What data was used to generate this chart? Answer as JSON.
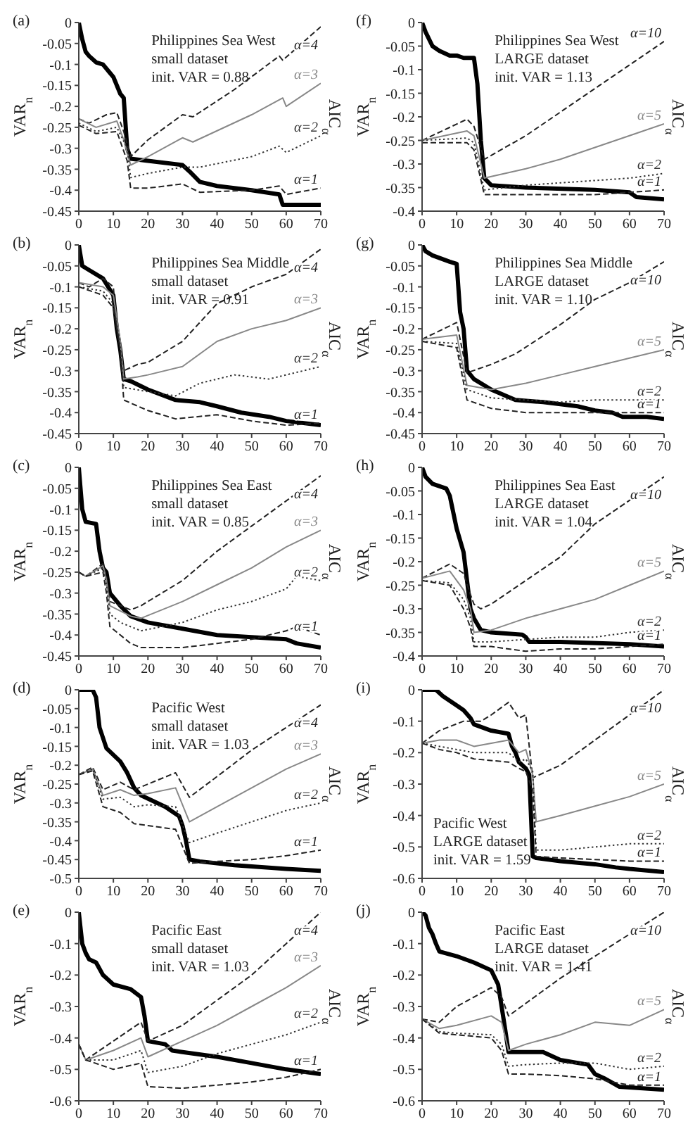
{
  "chart_data": [
    {
      "type": "line",
      "title": "(a)",
      "ylabel": "VAR$_{n}$",
      "y2label": "AIC$_{α}$",
      "annotations": [
        "Philippines Sea West",
        "small dataset",
        "init. VAR = 0.88"
      ],
      "xlim": [
        0,
        70
      ],
      "xticks": [
        0,
        10,
        20,
        30,
        40,
        50,
        60,
        70
      ],
      "ylim": [
        -0.45,
        0
      ],
      "yticks": [
        0,
        -0.05,
        -0.1,
        -0.15,
        -0.2,
        -0.25,
        -0.3,
        -0.35,
        -0.4,
        -0.45
      ],
      "series": [
        {
          "color": "#000000",
          "line_style": "solid",
          "x": [
            0,
            1,
            2,
            3,
            5,
            7,
            9,
            10,
            12,
            13,
            14,
            15,
            20,
            30,
            32,
            35,
            40,
            50,
            58,
            59,
            70
          ],
          "values": [
            0,
            -0.04,
            -0.07,
            -0.08,
            -0.095,
            -0.1,
            -0.12,
            -0.13,
            -0.17,
            -0.18,
            -0.3,
            -0.325,
            -0.33,
            -0.34,
            -0.355,
            -0.38,
            -0.39,
            -0.4,
            -0.41,
            -0.435,
            -0.435
          ]
        },
        {
          "name": "α=4",
          "color": "#222222",
          "line_style": "dashed",
          "x": [
            0,
            3,
            8,
            11,
            13,
            15,
            20,
            30,
            33,
            45,
            58,
            59,
            70
          ],
          "values": [
            -0.23,
            -0.24,
            -0.22,
            -0.215,
            -0.26,
            -0.32,
            -0.28,
            -0.22,
            -0.225,
            -0.16,
            -0.08,
            -0.09,
            -0.01
          ]
        },
        {
          "name": "α=3",
          "color": "#888888",
          "line_style": "solid",
          "x": [
            0,
            5,
            11,
            13,
            15,
            20,
            30,
            33,
            50,
            59,
            60,
            70
          ],
          "values": [
            -0.23,
            -0.25,
            -0.235,
            -0.28,
            -0.34,
            -0.32,
            -0.275,
            -0.285,
            -0.22,
            -0.18,
            -0.2,
            -0.145
          ]
        },
        {
          "name": "α=2",
          "color": "#333333",
          "line_style": "dotted",
          "x": [
            0,
            5,
            11,
            14,
            15,
            20,
            30,
            35,
            50,
            58,
            60,
            70
          ],
          "values": [
            -0.24,
            -0.26,
            -0.25,
            -0.3,
            -0.37,
            -0.36,
            -0.345,
            -0.345,
            -0.32,
            -0.295,
            -0.31,
            -0.27
          ]
        },
        {
          "name": "α=1",
          "color": "#222222",
          "line_style": "dashed",
          "x": [
            0,
            5,
            11,
            14,
            15,
            20,
            30,
            35,
            50,
            58,
            60,
            70
          ],
          "values": [
            -0.245,
            -0.265,
            -0.26,
            -0.33,
            -0.395,
            -0.395,
            -0.385,
            -0.405,
            -0.4,
            -0.39,
            -0.41,
            -0.395
          ]
        }
      ]
    },
    {
      "type": "line",
      "title": "(b)",
      "ylabel": "VAR$_{n}$",
      "y2label": "AIC$_{α}$",
      "annotations": [
        "Philippines Sea Middle",
        "small dataset",
        "init. VAR = 0.91"
      ],
      "xlim": [
        0,
        70
      ],
      "xticks": [
        0,
        10,
        20,
        30,
        40,
        50,
        60,
        70
      ],
      "ylim": [
        -0.45,
        0
      ],
      "yticks": [
        0,
        -0.05,
        -0.1,
        -0.15,
        -0.2,
        -0.25,
        -0.3,
        -0.35,
        -0.4,
        -0.45
      ],
      "series": [
        {
          "color": "#000000",
          "line_style": "solid",
          "x": [
            0,
            1,
            3,
            7,
            10,
            11,
            12,
            13,
            15,
            20,
            28,
            35,
            40,
            47,
            55,
            60,
            70
          ],
          "values": [
            0,
            -0.05,
            -0.06,
            -0.08,
            -0.12,
            -0.2,
            -0.25,
            -0.32,
            -0.325,
            -0.345,
            -0.37,
            -0.375,
            -0.385,
            -0.4,
            -0.41,
            -0.42,
            -0.43
          ]
        },
        {
          "name": "α=4",
          "color": "#222222",
          "line_style": "dashed",
          "x": [
            0,
            3,
            7,
            10,
            11,
            12,
            13,
            17,
            20,
            30,
            40,
            50,
            60,
            70
          ],
          "values": [
            -0.09,
            -0.1,
            -0.08,
            -0.1,
            -0.2,
            -0.24,
            -0.3,
            -0.285,
            -0.28,
            -0.23,
            -0.14,
            -0.1,
            -0.07,
            -0.01
          ]
        },
        {
          "name": "α=3",
          "color": "#888888",
          "line_style": "solid",
          "x": [
            0,
            7,
            10,
            12,
            13,
            17,
            20,
            30,
            40,
            50,
            60,
            70
          ],
          "values": [
            -0.09,
            -0.1,
            -0.12,
            -0.23,
            -0.32,
            -0.315,
            -0.31,
            -0.29,
            -0.23,
            -0.2,
            -0.18,
            -0.15
          ]
        },
        {
          "name": "α=2",
          "color": "#333333",
          "line_style": "dotted",
          "x": [
            0,
            7,
            10,
            12,
            13,
            20,
            28,
            35,
            45,
            55,
            70
          ],
          "values": [
            -0.1,
            -0.11,
            -0.14,
            -0.24,
            -0.34,
            -0.35,
            -0.36,
            -0.33,
            -0.31,
            -0.32,
            -0.29
          ]
        },
        {
          "name": "α=1",
          "color": "#222222",
          "line_style": "dashed",
          "x": [
            0,
            7,
            10,
            12,
            13,
            20,
            28,
            40,
            50,
            60,
            70
          ],
          "values": [
            -0.1,
            -0.12,
            -0.15,
            -0.25,
            -0.37,
            -0.395,
            -0.415,
            -0.405,
            -0.42,
            -0.43,
            -0.425
          ]
        }
      ]
    },
    {
      "type": "line",
      "title": "(c)",
      "ylabel": "VAR$_{n}$",
      "y2label": "AIC$_{α}$",
      "annotations": [
        "Philippines Sea East",
        "small dataset",
        "init. VAR = 0.85"
      ],
      "xlim": [
        0,
        70
      ],
      "xticks": [
        0,
        10,
        20,
        30,
        40,
        50,
        60,
        70
      ],
      "ylim": [
        -0.45,
        0
      ],
      "yticks": [
        0,
        -0.05,
        -0.1,
        -0.15,
        -0.2,
        -0.25,
        -0.3,
        -0.35,
        -0.4,
        -0.45
      ],
      "series": [
        {
          "color": "#000000",
          "line_style": "solid",
          "x": [
            0,
            1,
            2,
            5,
            6,
            7,
            8,
            9,
            12,
            15,
            20,
            30,
            40,
            50,
            60,
            63,
            70
          ],
          "values": [
            0,
            -0.1,
            -0.13,
            -0.135,
            -0.2,
            -0.24,
            -0.25,
            -0.3,
            -0.33,
            -0.355,
            -0.37,
            -0.385,
            -0.4,
            -0.405,
            -0.41,
            -0.42,
            -0.43
          ]
        },
        {
          "name": "α=4",
          "color": "#222222",
          "line_style": "dashed",
          "x": [
            0,
            2,
            7,
            8,
            9,
            15,
            18,
            30,
            40,
            50,
            60,
            70
          ],
          "values": [
            -0.25,
            -0.26,
            -0.23,
            -0.26,
            -0.32,
            -0.34,
            -0.33,
            -0.27,
            -0.2,
            -0.14,
            -0.08,
            -0.02
          ]
        },
        {
          "name": "α=3",
          "color": "#888888",
          "line_style": "solid",
          "x": [
            0,
            2,
            7,
            8,
            9,
            15,
            18,
            30,
            40,
            50,
            60,
            70
          ],
          "values": [
            -0.25,
            -0.26,
            -0.235,
            -0.27,
            -0.33,
            -0.355,
            -0.36,
            -0.32,
            -0.28,
            -0.24,
            -0.19,
            -0.15
          ]
        },
        {
          "name": "α=2",
          "color": "#333333",
          "line_style": "dotted",
          "x": [
            0,
            2,
            7,
            8,
            9,
            12,
            18,
            30,
            40,
            50,
            60,
            63,
            70
          ],
          "values": [
            -0.25,
            -0.26,
            -0.24,
            -0.28,
            -0.35,
            -0.37,
            -0.39,
            -0.37,
            -0.34,
            -0.32,
            -0.29,
            -0.26,
            -0.27
          ]
        },
        {
          "name": "α=1",
          "color": "#222222",
          "line_style": "dashed",
          "x": [
            0,
            2,
            7,
            8,
            9,
            15,
            18,
            30,
            40,
            50,
            60,
            63,
            70
          ],
          "values": [
            -0.25,
            -0.26,
            -0.25,
            -0.3,
            -0.38,
            -0.42,
            -0.43,
            -0.43,
            -0.42,
            -0.41,
            -0.39,
            -0.38,
            -0.4
          ]
        }
      ]
    },
    {
      "type": "line",
      "title": "(d)",
      "ylabel": "VAR$_{n}$",
      "y2label": "AIC$_{α}$",
      "annotations": [
        "Pacific West",
        "small dataset",
        "init. VAR = 1.03"
      ],
      "xlim": [
        0,
        70
      ],
      "xticks": [
        0,
        10,
        20,
        30,
        40,
        50,
        60,
        70
      ],
      "ylim": [
        -0.5,
        0
      ],
      "yticks": [
        0,
        -0.05,
        -0.1,
        -0.15,
        -0.2,
        -0.25,
        -0.3,
        -0.35,
        -0.4,
        -0.45,
        -0.5
      ],
      "series": [
        {
          "color": "#000000",
          "line_style": "solid",
          "x": [
            0,
            4,
            5,
            6,
            8,
            12,
            14,
            16,
            18,
            25,
            29,
            30,
            31,
            32,
            35,
            45,
            60,
            70
          ],
          "values": [
            0,
            0,
            -0.02,
            -0.1,
            -0.155,
            -0.19,
            -0.22,
            -0.26,
            -0.28,
            -0.31,
            -0.335,
            -0.36,
            -0.4,
            -0.45,
            -0.455,
            -0.465,
            -0.475,
            -0.48
          ]
        },
        {
          "name": "α=4",
          "color": "#222222",
          "line_style": "dashed",
          "x": [
            0,
            4,
            7,
            12,
            16,
            20,
            28,
            32,
            40,
            50,
            60,
            70
          ],
          "values": [
            -0.225,
            -0.205,
            -0.265,
            -0.245,
            -0.265,
            -0.25,
            -0.22,
            -0.285,
            -0.23,
            -0.16,
            -0.1,
            -0.04
          ]
        },
        {
          "name": "α=3",
          "color": "#888888",
          "line_style": "solid",
          "x": [
            0,
            4,
            7,
            12,
            16,
            20,
            28,
            32,
            40,
            50,
            60,
            70
          ],
          "values": [
            -0.225,
            -0.21,
            -0.28,
            -0.265,
            -0.28,
            -0.275,
            -0.26,
            -0.35,
            -0.31,
            -0.26,
            -0.21,
            -0.17
          ]
        },
        {
          "name": "α=2",
          "color": "#333333",
          "line_style": "dotted",
          "x": [
            0,
            4,
            7,
            12,
            16,
            20,
            28,
            32,
            40,
            50,
            60,
            70
          ],
          "values": [
            -0.225,
            -0.21,
            -0.29,
            -0.285,
            -0.31,
            -0.305,
            -0.31,
            -0.405,
            -0.38,
            -0.35,
            -0.32,
            -0.3
          ]
        },
        {
          "name": "α=1",
          "color": "#222222",
          "line_style": "dashed",
          "x": [
            0,
            4,
            7,
            12,
            16,
            20,
            28,
            32,
            40,
            50,
            60,
            70
          ],
          "values": [
            -0.225,
            -0.215,
            -0.31,
            -0.325,
            -0.355,
            -0.36,
            -0.37,
            -0.46,
            -0.455,
            -0.45,
            -0.44,
            -0.425
          ]
        }
      ]
    },
    {
      "type": "line",
      "title": "(e)",
      "ylabel": "VAR$_{n}$",
      "y2label": "AIC$_{α}$",
      "annotations": [
        "Pacific East",
        "small dataset",
        "init. VAR = 1.03"
      ],
      "xlim": [
        0,
        70
      ],
      "xticks": [
        0,
        10,
        20,
        30,
        40,
        50,
        60,
        70
      ],
      "ylim": [
        -0.6,
        0
      ],
      "yticks": [
        0,
        -0.1,
        -0.2,
        -0.3,
        -0.4,
        -0.5,
        -0.6
      ],
      "series": [
        {
          "color": "#000000",
          "line_style": "solid",
          "x": [
            0,
            1,
            2,
            3,
            5,
            7,
            10,
            15,
            18,
            19,
            20,
            25,
            27,
            30,
            40,
            50,
            60,
            70
          ],
          "values": [
            0,
            -0.1,
            -0.13,
            -0.15,
            -0.16,
            -0.2,
            -0.23,
            -0.245,
            -0.27,
            -0.33,
            -0.41,
            -0.42,
            -0.44,
            -0.445,
            -0.46,
            -0.48,
            -0.5,
            -0.515
          ]
        },
        {
          "name": "α=4",
          "color": "#222222",
          "line_style": "dashed",
          "x": [
            0,
            2,
            10,
            18,
            20,
            30,
            40,
            50,
            60,
            70
          ],
          "values": [
            -0.42,
            -0.47,
            -0.41,
            -0.35,
            -0.41,
            -0.36,
            -0.28,
            -0.2,
            -0.1,
            0
          ]
        },
        {
          "name": "α=3",
          "color": "#888888",
          "line_style": "solid",
          "x": [
            0,
            2,
            10,
            18,
            20,
            30,
            40,
            50,
            60,
            70
          ],
          "values": [
            -0.42,
            -0.47,
            -0.44,
            -0.4,
            -0.46,
            -0.41,
            -0.36,
            -0.3,
            -0.24,
            -0.17
          ]
        },
        {
          "name": "α=2",
          "color": "#333333",
          "line_style": "dotted",
          "x": [
            0,
            2,
            10,
            18,
            20,
            30,
            40,
            50,
            60,
            70
          ],
          "values": [
            -0.42,
            -0.47,
            -0.47,
            -0.44,
            -0.51,
            -0.49,
            -0.45,
            -0.42,
            -0.39,
            -0.35
          ]
        },
        {
          "name": "α=1",
          "color": "#222222",
          "line_style": "dashed",
          "x": [
            0,
            2,
            10,
            18,
            20,
            30,
            40,
            50,
            60,
            70
          ],
          "values": [
            -0.42,
            -0.47,
            -0.5,
            -0.48,
            -0.555,
            -0.56,
            -0.55,
            -0.54,
            -0.525,
            -0.5
          ]
        }
      ]
    },
    {
      "type": "line",
      "title": "(f)",
      "ylabel": "VAR$_{n}$",
      "y2label": "AIC$_{α}$",
      "annotations": [
        "Philippines Sea West",
        "LARGE dataset",
        "init. VAR = 1.13"
      ],
      "xlim": [
        0,
        70
      ],
      "xticks": [
        0,
        10,
        20,
        30,
        40,
        50,
        60,
        70
      ],
      "ylim": [
        -0.4,
        0
      ],
      "yticks": [
        0,
        -0.05,
        -0.1,
        -0.15,
        -0.2,
        -0.25,
        -0.3,
        -0.35,
        -0.4
      ],
      "series": [
        {
          "color": "#000000",
          "line_style": "solid",
          "x": [
            0,
            1,
            3,
            5,
            8,
            10,
            12,
            15,
            16,
            17,
            18,
            20,
            30,
            50,
            60,
            62,
            70
          ],
          "values": [
            0,
            -0.02,
            -0.05,
            -0.06,
            -0.07,
            -0.07,
            -0.075,
            -0.075,
            -0.13,
            -0.25,
            -0.33,
            -0.345,
            -0.35,
            -0.355,
            -0.36,
            -0.37,
            -0.375
          ]
        },
        {
          "name": "α=10",
          "color": "#222222",
          "line_style": "dashed",
          "x": [
            0,
            13,
            15,
            18,
            30,
            40,
            50,
            60,
            70
          ],
          "values": [
            -0.25,
            -0.205,
            -0.22,
            -0.29,
            -0.24,
            -0.19,
            -0.14,
            -0.09,
            -0.04
          ]
        },
        {
          "name": "α=5",
          "color": "#888888",
          "line_style": "solid",
          "x": [
            0,
            13,
            15,
            18,
            30,
            40,
            50,
            60,
            70
          ],
          "values": [
            -0.25,
            -0.23,
            -0.24,
            -0.33,
            -0.31,
            -0.29,
            -0.265,
            -0.24,
            -0.215
          ]
        },
        {
          "name": "α=2",
          "color": "#333333",
          "line_style": "dotted",
          "x": [
            0,
            13,
            15,
            18,
            30,
            40,
            50,
            60,
            70
          ],
          "values": [
            -0.25,
            -0.245,
            -0.255,
            -0.355,
            -0.345,
            -0.34,
            -0.335,
            -0.33,
            -0.32
          ]
        },
        {
          "name": "α=1",
          "color": "#222222",
          "line_style": "dashed",
          "x": [
            0,
            13,
            15,
            18,
            30,
            40,
            50,
            60,
            70
          ],
          "values": [
            -0.255,
            -0.255,
            -0.27,
            -0.365,
            -0.365,
            -0.365,
            -0.365,
            -0.36,
            -0.355
          ]
        }
      ]
    },
    {
      "type": "line",
      "title": "(g)",
      "ylabel": "VAR$_{n}$",
      "y2label": "AIC$_{α}$",
      "annotations": [
        "Philippines Sea Middle",
        "LARGE dataset",
        "init. VAR = 1.10"
      ],
      "xlim": [
        0,
        70
      ],
      "xticks": [
        0,
        10,
        20,
        30,
        40,
        50,
        60,
        70
      ],
      "ylim": [
        -0.45,
        0
      ],
      "yticks": [
        0,
        -0.05,
        -0.1,
        -0.15,
        -0.2,
        -0.25,
        -0.3,
        -0.35,
        -0.4,
        -0.45
      ],
      "series": [
        {
          "color": "#000000",
          "line_style": "solid",
          "x": [
            0,
            1,
            3,
            8,
            10,
            11,
            12,
            13,
            15,
            20,
            27,
            35,
            45,
            50,
            55,
            58,
            65,
            70
          ],
          "values": [
            0,
            -0.015,
            -0.025,
            -0.04,
            -0.045,
            -0.16,
            -0.2,
            -0.3,
            -0.32,
            -0.345,
            -0.37,
            -0.375,
            -0.385,
            -0.395,
            -0.4,
            -0.41,
            -0.41,
            -0.415
          ]
        },
        {
          "name": "α=10",
          "color": "#222222",
          "line_style": "dashed",
          "x": [
            0,
            10,
            13,
            20,
            27,
            40,
            50,
            60,
            70
          ],
          "values": [
            -0.225,
            -0.185,
            -0.305,
            -0.285,
            -0.26,
            -0.19,
            -0.13,
            -0.09,
            -0.04
          ]
        },
        {
          "name": "α=5",
          "color": "#888888",
          "line_style": "solid",
          "x": [
            0,
            10,
            13,
            20,
            30,
            40,
            50,
            60,
            70
          ],
          "values": [
            -0.225,
            -0.215,
            -0.335,
            -0.345,
            -0.33,
            -0.31,
            -0.29,
            -0.27,
            -0.25
          ]
        },
        {
          "name": "α=2",
          "color": "#333333",
          "line_style": "dotted",
          "x": [
            0,
            10,
            13,
            20,
            30,
            40,
            50,
            60,
            70
          ],
          "values": [
            -0.23,
            -0.235,
            -0.345,
            -0.365,
            -0.37,
            -0.375,
            -0.37,
            -0.37,
            -0.37
          ]
        },
        {
          "name": "α=1",
          "color": "#222222",
          "line_style": "dashed",
          "x": [
            0,
            10,
            13,
            20,
            30,
            40,
            50,
            60,
            70
          ],
          "values": [
            -0.23,
            -0.245,
            -0.37,
            -0.39,
            -0.4,
            -0.4,
            -0.4,
            -0.4,
            -0.4
          ]
        }
      ]
    },
    {
      "type": "line",
      "title": "(h)",
      "ylabel": "VAR$_{n}$",
      "y2label": "AIC$_{α}$",
      "annotations": [
        "Philippines Sea East",
        "LARGE dataset",
        "init. VAR = 1.04"
      ],
      "xlim": [
        0,
        70
      ],
      "xticks": [
        0,
        10,
        20,
        30,
        40,
        50,
        60,
        70
      ],
      "ylim": [
        -0.4,
        0
      ],
      "yticks": [
        0,
        -0.05,
        -0.1,
        -0.15,
        -0.2,
        -0.25,
        -0.3,
        -0.35,
        -0.4
      ],
      "series": [
        {
          "color": "#000000",
          "line_style": "solid",
          "x": [
            0,
            1,
            3,
            7,
            8,
            10,
            12,
            13,
            14,
            15,
            17,
            20,
            29,
            30,
            31,
            40,
            60,
            70
          ],
          "values": [
            0,
            -0.02,
            -0.035,
            -0.045,
            -0.06,
            -0.13,
            -0.18,
            -0.24,
            -0.3,
            -0.32,
            -0.345,
            -0.35,
            -0.355,
            -0.36,
            -0.37,
            -0.37,
            -0.375,
            -0.38
          ]
        },
        {
          "name": "α=10",
          "color": "#222222",
          "line_style": "dashed",
          "x": [
            0,
            8,
            12,
            14,
            15,
            17,
            20,
            30,
            40,
            50,
            60,
            70
          ],
          "values": [
            -0.235,
            -0.205,
            -0.225,
            -0.27,
            -0.29,
            -0.3,
            -0.29,
            -0.24,
            -0.19,
            -0.12,
            -0.07,
            -0.02
          ]
        },
        {
          "name": "α=5",
          "color": "#888888",
          "line_style": "solid",
          "x": [
            0,
            8,
            12,
            14,
            15,
            20,
            30,
            40,
            50,
            60,
            70
          ],
          "values": [
            -0.235,
            -0.22,
            -0.26,
            -0.3,
            -0.35,
            -0.345,
            -0.32,
            -0.3,
            -0.28,
            -0.25,
            -0.22
          ]
        },
        {
          "name": "α=2",
          "color": "#333333",
          "line_style": "dotted",
          "x": [
            0,
            8,
            12,
            14,
            15,
            20,
            30,
            40,
            50,
            60,
            70
          ],
          "values": [
            -0.24,
            -0.245,
            -0.28,
            -0.32,
            -0.37,
            -0.37,
            -0.365,
            -0.36,
            -0.36,
            -0.35,
            -0.345
          ]
        },
        {
          "name": "α=1",
          "color": "#222222",
          "line_style": "dashed",
          "x": [
            0,
            8,
            12,
            14,
            15,
            20,
            30,
            40,
            50,
            60,
            70
          ],
          "values": [
            -0.24,
            -0.25,
            -0.3,
            -0.34,
            -0.38,
            -0.38,
            -0.39,
            -0.385,
            -0.385,
            -0.38,
            -0.375
          ]
        }
      ]
    },
    {
      "type": "line",
      "title": "(i)",
      "ylabel": "VAR$_{n}$",
      "y2label": "AIC$_{α}$",
      "annotations": [
        "Pacific West",
        "LARGE dataset",
        "init. VAR = 1.59"
      ],
      "xlim": [
        0,
        70
      ],
      "xticks": [
        0,
        10,
        20,
        30,
        40,
        50,
        60,
        70
      ],
      "ylim": [
        -0.6,
        0
      ],
      "yticks": [
        0,
        -0.1,
        -0.2,
        -0.3,
        -0.4,
        -0.5,
        -0.6
      ],
      "series": [
        {
          "color": "#000000",
          "line_style": "solid",
          "x": [
            0,
            4,
            6,
            10,
            12,
            14,
            15,
            20,
            25,
            26,
            27,
            28,
            30,
            31,
            32,
            33,
            40,
            50,
            56,
            60,
            70
          ],
          "values": [
            0,
            0,
            -0.02,
            -0.05,
            -0.065,
            -0.09,
            -0.11,
            -0.13,
            -0.14,
            -0.18,
            -0.2,
            -0.23,
            -0.25,
            -0.27,
            -0.53,
            -0.535,
            -0.545,
            -0.555,
            -0.565,
            -0.57,
            -0.58
          ]
        },
        {
          "name": "α=10",
          "color": "#222222",
          "line_style": "dashed",
          "x": [
            0,
            5,
            12,
            17,
            20,
            25,
            28,
            30,
            32,
            40,
            50,
            60,
            70
          ],
          "values": [
            -0.17,
            -0.13,
            -0.1,
            -0.1,
            -0.08,
            -0.04,
            -0.09,
            -0.08,
            -0.28,
            -0.24,
            -0.16,
            -0.08,
            0
          ]
        },
        {
          "name": "α=5",
          "color": "#888888",
          "line_style": "solid",
          "x": [
            0,
            5,
            10,
            15,
            20,
            25,
            28,
            30,
            32,
            33,
            40,
            50,
            60,
            70
          ],
          "values": [
            -0.17,
            -0.16,
            -0.16,
            -0.18,
            -0.17,
            -0.16,
            -0.2,
            -0.19,
            -0.27,
            -0.42,
            -0.4,
            -0.37,
            -0.34,
            -0.3
          ]
        },
        {
          "name": "α=2",
          "color": "#333333",
          "line_style": "dotted",
          "x": [
            0,
            5,
            10,
            15,
            25,
            28,
            30,
            32,
            33,
            40,
            50,
            60,
            70
          ],
          "values": [
            -0.17,
            -0.18,
            -0.19,
            -0.2,
            -0.2,
            -0.23,
            -0.22,
            -0.26,
            -0.51,
            -0.51,
            -0.5,
            -0.49,
            -0.49
          ]
        },
        {
          "name": "α=1",
          "color": "#222222",
          "line_style": "dashed",
          "x": [
            0,
            5,
            10,
            15,
            25,
            28,
            30,
            32,
            33,
            40,
            50,
            60,
            70
          ],
          "values": [
            -0.17,
            -0.19,
            -0.2,
            -0.22,
            -0.23,
            -0.25,
            -0.26,
            -0.32,
            -0.53,
            -0.535,
            -0.54,
            -0.545,
            -0.545
          ]
        }
      ]
    },
    {
      "type": "line",
      "title": "(j)",
      "ylabel": "VAR$_{n}$",
      "y2label": "AIC$_{α}$",
      "annotations": [
        "Pacific East",
        "LARGE dataset",
        "init. VAR = 1.41"
      ],
      "xlim": [
        0,
        70
      ],
      "xticks": [
        0,
        10,
        20,
        30,
        40,
        50,
        60,
        70
      ],
      "ylim": [
        -0.6,
        0
      ],
      "yticks": [
        0,
        -0.1,
        -0.2,
        -0.3,
        -0.4,
        -0.5,
        -0.6
      ],
      "series": [
        {
          "color": "#000000",
          "line_style": "solid",
          "x": [
            0,
            1,
            2,
            3,
            4,
            5,
            10,
            15,
            20,
            22,
            23,
            24,
            25,
            35,
            40,
            48,
            50,
            53,
            57,
            70
          ],
          "values": [
            0,
            -0.01,
            -0.05,
            -0.07,
            -0.1,
            -0.125,
            -0.14,
            -0.16,
            -0.185,
            -0.23,
            -0.3,
            -0.37,
            -0.445,
            -0.445,
            -0.47,
            -0.485,
            -0.515,
            -0.53,
            -0.555,
            -0.565
          ]
        },
        {
          "name": "α=10",
          "color": "#222222",
          "line_style": "dashed",
          "x": [
            0,
            5,
            10,
            20,
            23,
            25,
            30,
            40,
            50,
            60,
            70
          ],
          "values": [
            -0.34,
            -0.35,
            -0.3,
            -0.24,
            -0.27,
            -0.33,
            -0.29,
            -0.21,
            -0.14,
            -0.07,
            0
          ]
        },
        {
          "name": "α=5",
          "color": "#888888",
          "line_style": "solid",
          "x": [
            0,
            5,
            10,
            20,
            23,
            25,
            30,
            40,
            50,
            60,
            70
          ],
          "values": [
            -0.34,
            -0.37,
            -0.36,
            -0.33,
            -0.35,
            -0.44,
            -0.42,
            -0.39,
            -0.35,
            -0.36,
            -0.31
          ]
        },
        {
          "name": "α=2",
          "color": "#333333",
          "line_style": "dotted",
          "x": [
            0,
            5,
            10,
            20,
            23,
            25,
            30,
            40,
            50,
            60,
            70
          ],
          "values": [
            -0.34,
            -0.38,
            -0.385,
            -0.39,
            -0.42,
            -0.49,
            -0.485,
            -0.48,
            -0.48,
            -0.5,
            -0.49
          ]
        },
        {
          "name": "α=1",
          "color": "#222222",
          "line_style": "dashed",
          "x": [
            0,
            5,
            10,
            20,
            23,
            25,
            30,
            40,
            50,
            60,
            70
          ],
          "values": [
            -0.34,
            -0.385,
            -0.39,
            -0.4,
            -0.44,
            -0.515,
            -0.515,
            -0.52,
            -0.53,
            -0.55,
            -0.55
          ]
        }
      ]
    }
  ]
}
